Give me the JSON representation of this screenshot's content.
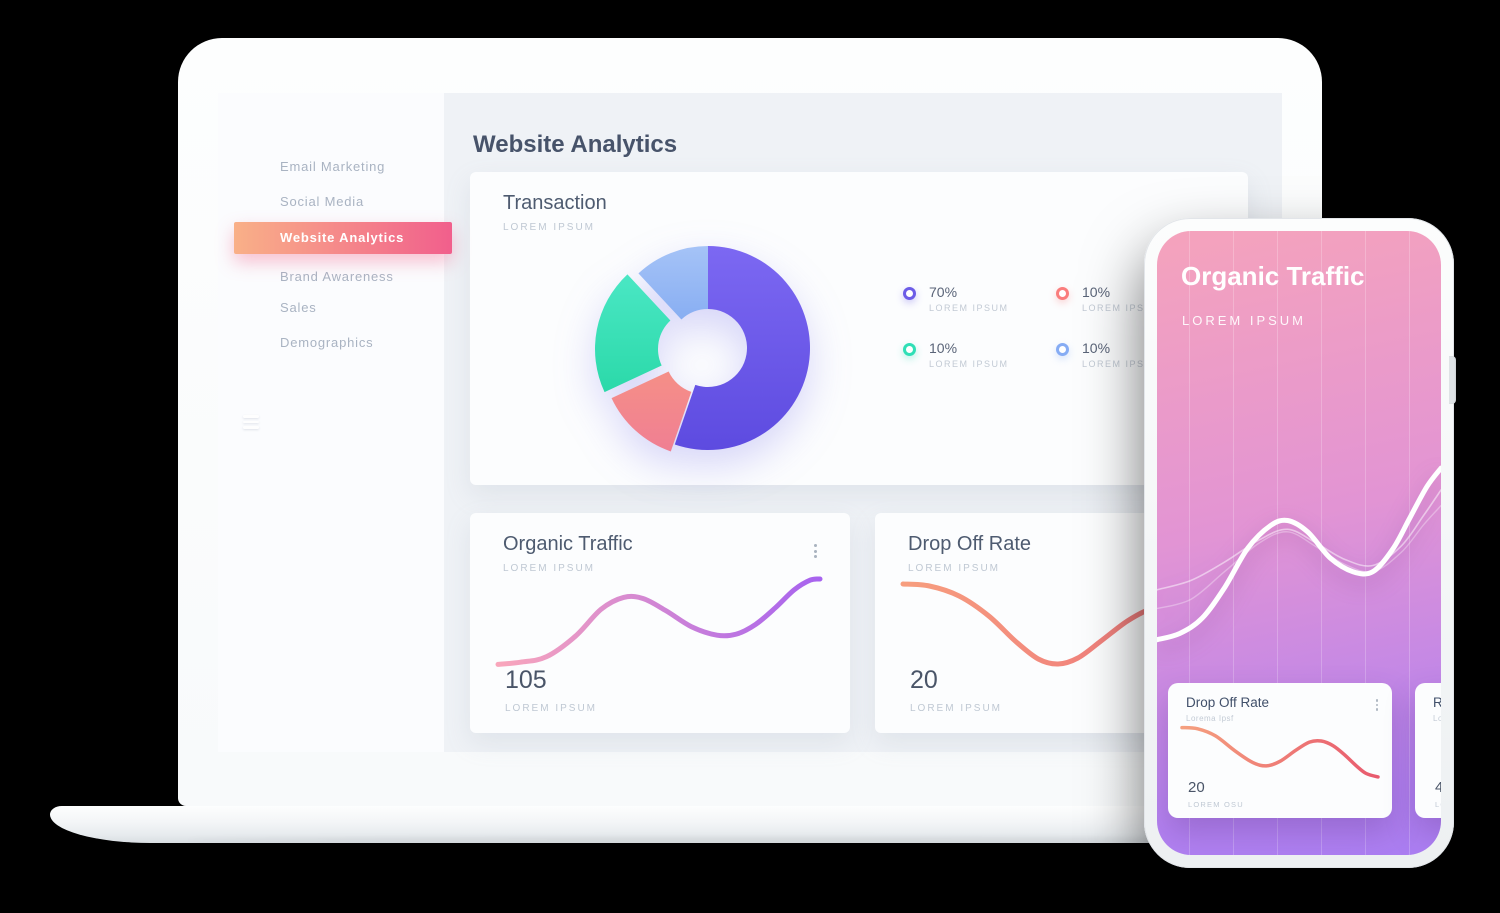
{
  "page": {
    "background": "#000000"
  },
  "laptop": {
    "sidebar": {
      "items": [
        {
          "label": "Email Marketing",
          "active": false
        },
        {
          "label": "Social Media",
          "active": false
        },
        {
          "label": "Website Analytics",
          "active": true
        },
        {
          "label": "Brand Awareness",
          "active": false
        },
        {
          "label": "Sales",
          "active": false
        },
        {
          "label": "Demographics",
          "active": false
        }
      ],
      "active_gradient": [
        "#F9B088",
        "#F15F8C"
      ]
    },
    "header": {
      "title": "Website Analytics"
    },
    "transaction": {
      "title": "Transaction",
      "subtitle": "LOREM IPSUM",
      "legend": [
        {
          "pct": "70%",
          "label": "LOREM IPSUM",
          "color": "#6C5CE7"
        },
        {
          "pct": "10%",
          "label": "LOREM IPSUM",
          "color": "#FA7D7D"
        },
        {
          "pct": "10%",
          "label": "LOREM IPSUM",
          "color": "#2FDFB6"
        },
        {
          "pct": "10%",
          "label": "LOREM IPSUM",
          "color": "#86ACF4"
        }
      ]
    },
    "organic": {
      "title": "Organic Traffic",
      "subtitle": "LOREM IPSUM",
      "value": "105",
      "value_label": "LOREM IPSUM"
    },
    "dropoff": {
      "title": "Drop Off Rate",
      "subtitle": "LOREM IPSUM",
      "value": "20",
      "value_label": "LOREM IPSUM"
    }
  },
  "phone": {
    "header": {
      "title": "Organic Traffic",
      "subtitle": "LOREM IPSUM"
    },
    "card_dropoff": {
      "title": "Drop Off Rate",
      "subtitle": "Lorema Ipsf",
      "value": "20",
      "value_label": "LOREM OSU"
    },
    "card_partial": {
      "title": "Re",
      "subtitle": "Lor",
      "value": "4",
      "value_label": "LO"
    }
  },
  "chart_data": [
    {
      "id": "transaction-donut",
      "type": "pie",
      "title": "Transaction",
      "subtitle": "LOREM IPSUM",
      "labels": [
        "LOREM IPSUM",
        "LOREM IPSUM",
        "LOREM IPSUM",
        "LOREM IPSUM"
      ],
      "values": [
        70,
        10,
        10,
        10
      ],
      "colors": [
        "#6C5CE7",
        "#F58A8F",
        "#36E0B5",
        "#94B8F4"
      ],
      "donut": true,
      "legend_position": "right",
      "display_segments": [
        {
          "a0": 0,
          "a1": 199,
          "dx": 0,
          "dy": 0,
          "c1": "#7C68F2",
          "c2": "#5D4BE0"
        },
        {
          "a0": 199,
          "a1": 245,
          "dx": -4,
          "dy": 7,
          "c1": "#F58F87",
          "c2": "#F07F93"
        },
        {
          "a0": 245,
          "a1": 317,
          "dx": -11,
          "dy": 1,
          "c1": "#4AE7C4",
          "c2": "#2BD9A9"
        },
        {
          "a0": 317,
          "a1": 360,
          "dx": 0,
          "dy": 0,
          "c1": "#A5C3F7",
          "c2": "#88AEF2"
        }
      ]
    },
    {
      "id": "laptop-organic-line",
      "type": "line",
      "title": "Organic Traffic",
      "value": 105,
      "stroke": [
        "#F9A6BB",
        "#A763EF"
      ],
      "stroke_width": 5,
      "points": [
        [
          0,
          92
        ],
        [
          7,
          90
        ],
        [
          15,
          85
        ],
        [
          24,
          66
        ],
        [
          32,
          41
        ],
        [
          39,
          30
        ],
        [
          45,
          31
        ],
        [
          52,
          42
        ],
        [
          60,
          57
        ],
        [
          68,
          65
        ],
        [
          74,
          64
        ],
        [
          80,
          55
        ],
        [
          86,
          40
        ],
        [
          92,
          23
        ],
        [
          97,
          14
        ],
        [
          100,
          13
        ]
      ]
    },
    {
      "id": "laptop-dropoff-line",
      "type": "line",
      "title": "Drop Off Rate",
      "value": 20,
      "stroke": [
        "#F79E7E",
        "#EC6F7B"
      ],
      "stroke_width": 5,
      "points": [
        [
          0,
          13
        ],
        [
          8,
          15
        ],
        [
          17,
          25
        ],
        [
          26,
          45
        ],
        [
          34,
          70
        ],
        [
          41,
          88
        ],
        [
          47,
          93
        ],
        [
          53,
          87
        ],
        [
          60,
          70
        ],
        [
          68,
          50
        ],
        [
          75,
          38
        ],
        [
          82,
          34
        ],
        [
          89,
          38
        ],
        [
          95,
          47
        ],
        [
          100,
          54
        ]
      ]
    },
    {
      "id": "phone-wave",
      "type": "line",
      "title": "Organic Traffic",
      "series": [
        {
          "name": "main",
          "color": "#FFFFFF",
          "opacity": 1,
          "width": 5,
          "points": [
            [
              0,
              65.5
            ],
            [
              8,
              64.5
            ],
            [
              16,
              62
            ],
            [
              24,
              57
            ],
            [
              32,
              50.8
            ],
            [
              40,
              47.2
            ],
            [
              46,
              46.4
            ],
            [
              53,
              48.2
            ],
            [
              61,
              52.4
            ],
            [
              69,
              54.6
            ],
            [
              76,
              54.6
            ],
            [
              83,
              51
            ],
            [
              89,
              46
            ],
            [
              95,
              41
            ],
            [
              100,
              38
            ]
          ]
        },
        {
          "name": "ghost-1",
          "color": "#FFFFFF",
          "opacity": 0.5,
          "width": 1.6,
          "points": [
            [
              0,
              57.5
            ],
            [
              12,
              56
            ],
            [
              24,
              53
            ],
            [
              36,
              49.5
            ],
            [
              46,
              47.8
            ],
            [
              56,
              50
            ],
            [
              66,
              52.6
            ],
            [
              76,
              53.6
            ],
            [
              86,
              50.5
            ],
            [
              94,
              45.5
            ],
            [
              100,
              41.5
            ]
          ]
        },
        {
          "name": "ghost-2",
          "color": "#FFFFFF",
          "opacity": 0.32,
          "width": 1.4,
          "points": [
            [
              0,
              60.5
            ],
            [
              12,
              59
            ],
            [
              24,
              54.5
            ],
            [
              36,
              50
            ],
            [
              46,
              48.2
            ],
            [
              56,
              50.6
            ],
            [
              66,
              53.4
            ],
            [
              76,
              54.6
            ],
            [
              86,
              51.5
            ],
            [
              94,
              47
            ],
            [
              100,
              44
            ]
          ]
        }
      ]
    },
    {
      "id": "phone-card-line",
      "type": "line",
      "title": "Drop Off Rate",
      "value": 20,
      "stroke": [
        "#F5A07F",
        "#E85A6E"
      ],
      "stroke_width": 3.5,
      "points": [
        [
          0,
          8
        ],
        [
          8,
          10
        ],
        [
          17,
          22
        ],
        [
          27,
          48
        ],
        [
          36,
          68
        ],
        [
          43,
          74
        ],
        [
          50,
          66
        ],
        [
          58,
          47
        ],
        [
          65,
          33
        ],
        [
          71,
          31
        ],
        [
          77,
          39
        ],
        [
          83,
          55
        ],
        [
          89,
          74
        ],
        [
          94,
          87
        ],
        [
          100,
          93
        ]
      ]
    }
  ]
}
